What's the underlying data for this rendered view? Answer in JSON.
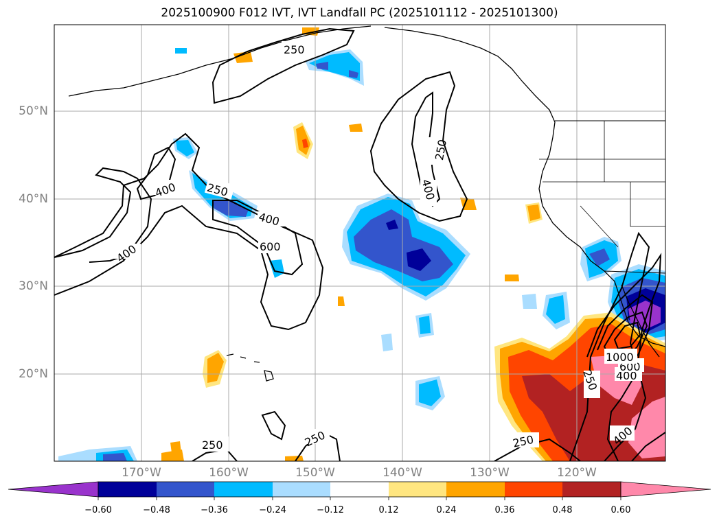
{
  "title": "2025100900 F012 IVT, IVT Landfall PC (2025101112 - 2025101300)",
  "lat_labels": [
    "50°N",
    "40°N",
    "30°N",
    "20°N"
  ],
  "lon_labels": [
    "170°W",
    "160°W",
    "150°W",
    "140°W",
    "130°W",
    "120°W"
  ],
  "contour_labels": [
    "250",
    "250",
    "250",
    "250",
    "250",
    "250",
    "250",
    "400",
    "400",
    "400",
    "400",
    "400",
    "400",
    "600",
    "600",
    "1000"
  ],
  "colorbar": {
    "ticks": [
      "−0.60",
      "−0.48",
      "−0.36",
      "−0.24",
      "−0.12",
      "0.12",
      "0.24",
      "0.36",
      "0.48",
      "0.60"
    ],
    "colors": [
      "#9933cc",
      "#000099",
      "#3355cc",
      "#00bbff",
      "#aaddff",
      "#ffffff",
      "#ffe680",
      "#ffa500",
      "#ff4500",
      "#b22222",
      "#ff88aa"
    ]
  },
  "colors": {
    "purple": "#9933cc",
    "navy": "#000099",
    "blue": "#3355cc",
    "cyan": "#00bbff",
    "lightblue": "#aaddff",
    "yellow": "#ffe680",
    "orange": "#ffa500",
    "redorange": "#ff4500",
    "darkred": "#b22222",
    "pink": "#ff88aa"
  }
}
